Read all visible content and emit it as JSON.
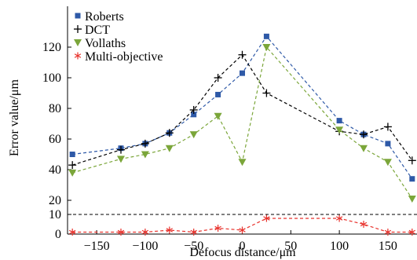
{
  "chart_data": {
    "type": "line",
    "xlabel": "Defocus distance/μm",
    "ylabel": "Error value/μm",
    "xlim": [
      -180,
      180
    ],
    "ylim": [
      0,
      130
    ],
    "x_ticks": [
      -150,
      -100,
      -50,
      0,
      50,
      100,
      150
    ],
    "x_tick_labels": [
      "−150",
      "−100",
      "−50",
      "0",
      "50",
      "100",
      "150"
    ],
    "y_ticks": [
      0,
      10,
      20,
      40,
      60,
      80,
      100,
      120
    ],
    "y_tick_labels": [
      "0",
      "10",
      "20",
      "40",
      "60",
      "80",
      "100",
      "120"
    ],
    "x": [
      -175,
      -125,
      -100,
      -75,
      -50,
      -25,
      0,
      25,
      100,
      125,
      150,
      175
    ],
    "reference_line": 10,
    "legend_position": "top-left",
    "grid": false,
    "series": [
      {
        "name": "Roberts",
        "color": "#2e59a7",
        "marker": "square",
        "values": [
          50,
          54,
          57,
          64,
          76,
          89,
          103,
          127,
          72,
          63,
          57,
          34
        ]
      },
      {
        "name": "DCT",
        "color": "#000000",
        "marker": "plus",
        "values": [
          43,
          53,
          57,
          64,
          79,
          100,
          115,
          90,
          65,
          63,
          68,
          46
        ]
      },
      {
        "name": "Vollaths",
        "color": "#7ba63a",
        "marker": "triangle-down",
        "values": [
          38,
          47,
          50,
          54,
          63,
          75,
          45,
          120,
          66,
          54,
          45,
          21
        ]
      },
      {
        "name": "Multi-objective",
        "color": "#e8322c",
        "marker": "asterisk",
        "values": [
          1,
          1,
          1,
          2,
          1,
          3,
          2,
          8,
          8,
          5,
          1,
          1
        ]
      }
    ]
  }
}
